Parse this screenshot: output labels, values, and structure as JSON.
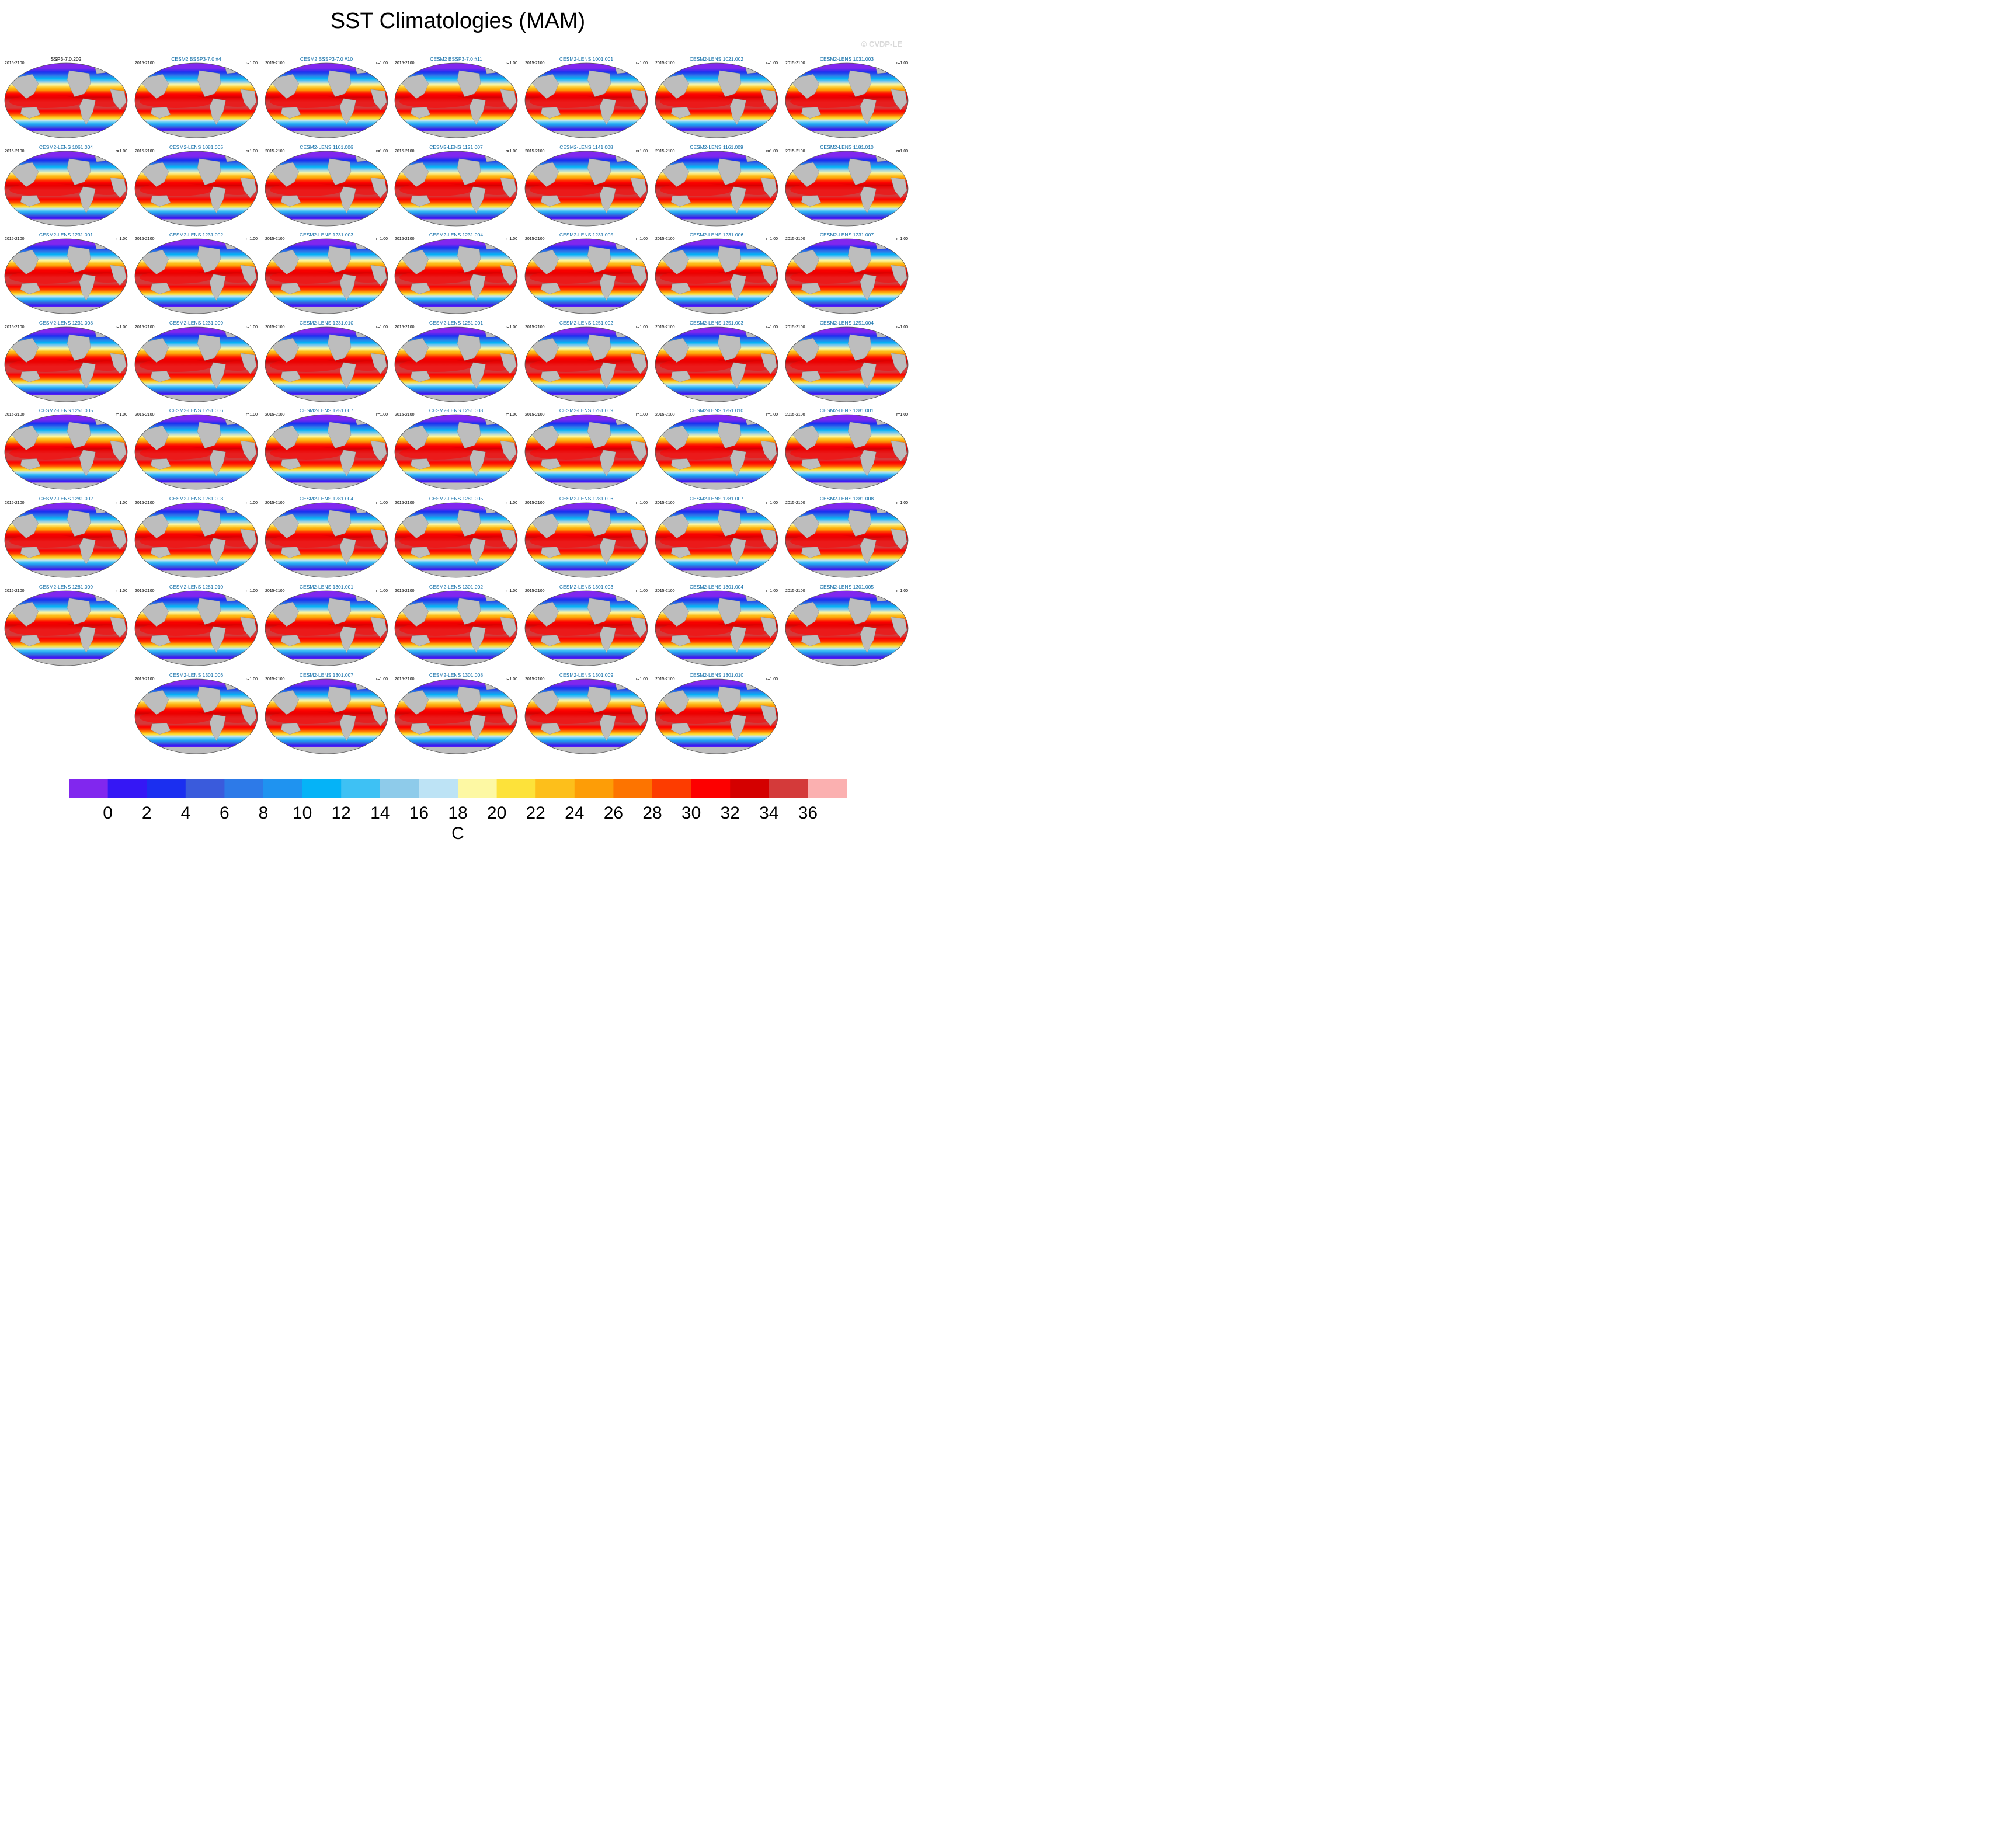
{
  "title": "SST Climatologies (MAM)",
  "watermark": "© CVDP-LE",
  "panel_period": "2015-2100",
  "colors": {
    "land": "#bdbdbd",
    "reference_title": "#000000",
    "member_title": "#0a6aa6",
    "watermark": "#d8d8d8",
    "palette": [
      "#8127ee",
      "#3517f5",
      "#1b2ff0",
      "#3a5bdc",
      "#2d7ae8",
      "#1f93f0",
      "#05b3f7",
      "#3ec1f4",
      "#8ecbea",
      "#bde3f5",
      "#fdf8a3",
      "#fde23a",
      "#fdbf1b",
      "#fd9d07",
      "#fd7400",
      "#fd3c00",
      "#fd0000",
      "#d40000",
      "#d43a3a",
      "#fbb0b0"
    ]
  },
  "chart_data": {
    "type": "heatmap",
    "title": "SST Climatologies (MAM)",
    "colorbar": {
      "label": "C",
      "ticks": [
        "0",
        "2",
        "4",
        "6",
        "8",
        "10",
        "12",
        "14",
        "16",
        "18",
        "20",
        "22",
        "24",
        "26",
        "28",
        "30",
        "32",
        "34",
        "36"
      ],
      "levels": [
        0,
        2,
        4,
        6,
        8,
        10,
        12,
        14,
        16,
        18,
        20,
        22,
        24,
        26,
        28,
        30,
        32,
        34,
        36
      ]
    },
    "panels": [
      {
        "title": "SSP3-7.0.202",
        "period": "2015-2100",
        "r": "",
        "reference": true
      },
      {
        "title": "CESM2 BSSP3-7.0 #4",
        "period": "2015-2100",
        "r": "r=1.00"
      },
      {
        "title": "CESM2 BSSP3-7.0 #10",
        "period": "2015-2100",
        "r": "r=1.00"
      },
      {
        "title": "CESM2 BSSP3-7.0 #11",
        "period": "2015-2100",
        "r": "r=1.00"
      },
      {
        "title": "CESM2-LENS 1001.001",
        "period": "2015-2100",
        "r": "r=1.00"
      },
      {
        "title": "CESM2-LENS 1021.002",
        "period": "2015-2100",
        "r": "r=1.00"
      },
      {
        "title": "CESM2-LENS 1031.003",
        "period": "2015-2100",
        "r": "r=1.00"
      },
      {
        "title": "CESM2-LENS 1061.004",
        "period": "2015-2100",
        "r": "r=1.00"
      },
      {
        "title": "CESM2-LENS 1081.005",
        "period": "2015-2100",
        "r": "r=1.00"
      },
      {
        "title": "CESM2-LENS 1101.006",
        "period": "2015-2100",
        "r": "r=1.00"
      },
      {
        "title": "CESM2-LENS 1121.007",
        "period": "2015-2100",
        "r": "r=1.00"
      },
      {
        "title": "CESM2-LENS 1141.008",
        "period": "2015-2100",
        "r": "r=1.00"
      },
      {
        "title": "CESM2-LENS 1161.009",
        "period": "2015-2100",
        "r": "r=1.00"
      },
      {
        "title": "CESM2-LENS 1181.010",
        "period": "2015-2100",
        "r": "r=1.00"
      },
      {
        "title": "CESM2-LENS 1231.001",
        "period": "2015-2100",
        "r": "r=1.00"
      },
      {
        "title": "CESM2-LENS 1231.002",
        "period": "2015-2100",
        "r": "r=1.00"
      },
      {
        "title": "CESM2-LENS 1231.003",
        "period": "2015-2100",
        "r": "r=1.00"
      },
      {
        "title": "CESM2-LENS 1231.004",
        "period": "2015-2100",
        "r": "r=1.00"
      },
      {
        "title": "CESM2-LENS 1231.005",
        "period": "2015-2100",
        "r": "r=1.00"
      },
      {
        "title": "CESM2-LENS 1231.006",
        "period": "2015-2100",
        "r": "r=1.00"
      },
      {
        "title": "CESM2-LENS 1231.007",
        "period": "2015-2100",
        "r": "r=1.00"
      },
      {
        "title": "CESM2-LENS 1231.008",
        "period": "2015-2100",
        "r": "r=1.00"
      },
      {
        "title": "CESM2-LENS 1231.009",
        "period": "2015-2100",
        "r": "r=1.00"
      },
      {
        "title": "CESM2-LENS 1231.010",
        "period": "2015-2100",
        "r": "r=1.00"
      },
      {
        "title": "CESM2-LENS 1251.001",
        "period": "2015-2100",
        "r": "r=1.00"
      },
      {
        "title": "CESM2-LENS 1251.002",
        "period": "2015-2100",
        "r": "r=1.00"
      },
      {
        "title": "CESM2-LENS 1251.003",
        "period": "2015-2100",
        "r": "r=1.00"
      },
      {
        "title": "CESM2-LENS 1251.004",
        "period": "2015-2100",
        "r": "r=1.00"
      },
      {
        "title": "CESM2-LENS 1251.005",
        "period": "2015-2100",
        "r": "r=1.00"
      },
      {
        "title": "CESM2-LENS 1251.006",
        "period": "2015-2100",
        "r": "r=1.00"
      },
      {
        "title": "CESM2-LENS 1251.007",
        "period": "2015-2100",
        "r": "r=1.00"
      },
      {
        "title": "CESM2-LENS 1251.008",
        "period": "2015-2100",
        "r": "r=1.00"
      },
      {
        "title": "CESM2-LENS 1251.009",
        "period": "2015-2100",
        "r": "r=1.00"
      },
      {
        "title": "CESM2-LENS 1251.010",
        "period": "2015-2100",
        "r": "r=1.00"
      },
      {
        "title": "CESM2-LENS 1281.001",
        "period": "2015-2100",
        "r": "r=1.00"
      },
      {
        "title": "CESM2-LENS 1281.002",
        "period": "2015-2100",
        "r": "r=1.00"
      },
      {
        "title": "CESM2-LENS 1281.003",
        "period": "2015-2100",
        "r": "r=1.00"
      },
      {
        "title": "CESM2-LENS 1281.004",
        "period": "2015-2100",
        "r": "r=1.00"
      },
      {
        "title": "CESM2-LENS 1281.005",
        "period": "2015-2100",
        "r": "r=1.00"
      },
      {
        "title": "CESM2-LENS 1281.006",
        "period": "2015-2100",
        "r": "r=1.00"
      },
      {
        "title": "CESM2-LENS 1281.007",
        "period": "2015-2100",
        "r": "r=1.00"
      },
      {
        "title": "CESM2-LENS 1281.008",
        "period": "2015-2100",
        "r": "r=1.00"
      },
      {
        "title": "CESM2-LENS 1281.009",
        "period": "2015-2100",
        "r": "r=1.00"
      },
      {
        "title": "CESM2-LENS 1281.010",
        "period": "2015-2100",
        "r": "r=1.00"
      },
      {
        "title": "CESM2-LENS 1301.001",
        "period": "2015-2100",
        "r": "r=1.00"
      },
      {
        "title": "CESM2-LENS 1301.002",
        "period": "2015-2100",
        "r": "r=1.00"
      },
      {
        "title": "CESM2-LENS 1301.003",
        "period": "2015-2100",
        "r": "r=1.00"
      },
      {
        "title": "CESM2-LENS 1301.004",
        "period": "2015-2100",
        "r": "r=1.00"
      },
      {
        "title": "CESM2-LENS 1301.005",
        "period": "2015-2100",
        "r": "r=1.00"
      },
      {
        "title": "CESM2-LENS 1301.006",
        "period": "2015-2100",
        "r": "r=1.00"
      },
      {
        "title": "CESM2-LENS 1301.007",
        "period": "2015-2100",
        "r": "r=1.00"
      },
      {
        "title": "CESM2-LENS 1301.008",
        "period": "2015-2100",
        "r": "r=1.00"
      },
      {
        "title": "CESM2-LENS 1301.009",
        "period": "2015-2100",
        "r": "r=1.00"
      },
      {
        "title": "CESM2-LENS 1301.010",
        "period": "2015-2100",
        "r": "r=1.00"
      }
    ]
  }
}
